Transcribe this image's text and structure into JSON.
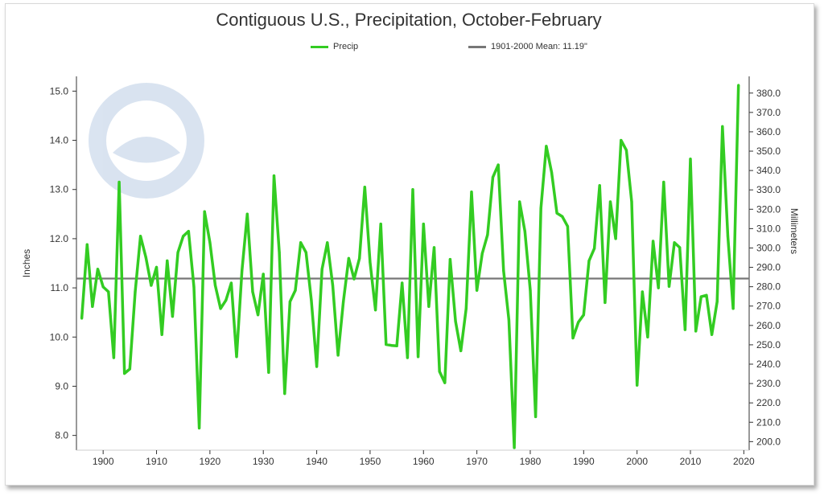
{
  "chart_data": {
    "type": "line",
    "title": "Contiguous U.S., Precipitation, October-February",
    "ylabel": "Inches",
    "y2label": "Millimeters",
    "ylim": [
      7.7,
      15.3
    ],
    "xlim": [
      1895,
      2021
    ],
    "y2lim": [
      195.58,
      388.62
    ],
    "yticks": [
      "8.0",
      "9.0",
      "10.0",
      "11.0",
      "12.0",
      "13.0",
      "14.0",
      "15.0"
    ],
    "y2ticks": [
      "200.0",
      "210.0",
      "220.0",
      "230.0",
      "240.0",
      "250.0",
      "260.0",
      "270.0",
      "280.0",
      "290.0",
      "300.0",
      "310.0",
      "320.0",
      "330.0",
      "340.0",
      "350.0",
      "360.0",
      "370.0",
      "380.0"
    ],
    "xticks": [
      "1900",
      "1910",
      "1920",
      "1930",
      "1940",
      "1950",
      "1960",
      "1970",
      "1980",
      "1990",
      "2000",
      "2010",
      "2020"
    ],
    "grid": false,
    "legend_position": "top-center",
    "series": [
      {
        "name": "Precip",
        "color": "#33cc22",
        "x": [
          1896,
          1897,
          1898,
          1899,
          1900,
          1901,
          1902,
          1903,
          1904,
          1905,
          1906,
          1907,
          1908,
          1909,
          1910,
          1911,
          1912,
          1913,
          1914,
          1915,
          1916,
          1917,
          1918,
          1919,
          1920,
          1921,
          1922,
          1923,
          1924,
          1925,
          1926,
          1927,
          1928,
          1929,
          1930,
          1931,
          1932,
          1933,
          1934,
          1935,
          1936,
          1937,
          1938,
          1939,
          1940,
          1941,
          1942,
          1943,
          1944,
          1945,
          1946,
          1947,
          1948,
          1949,
          1950,
          1951,
          1952,
          1953,
          1954,
          1955,
          1956,
          1957,
          1958,
          1959,
          1960,
          1961,
          1962,
          1963,
          1964,
          1965,
          1966,
          1967,
          1968,
          1969,
          1970,
          1971,
          1972,
          1973,
          1974,
          1975,
          1976,
          1977,
          1978,
          1979,
          1980,
          1981,
          1982,
          1983,
          1984,
          1985,
          1986,
          1987,
          1988,
          1989,
          1990,
          1991,
          1992,
          1993,
          1994,
          1995,
          1996,
          1997,
          1998,
          1999,
          2000,
          2001,
          2002,
          2003,
          2004,
          2005,
          2006,
          2007,
          2008,
          2009,
          2010,
          2011,
          2012,
          2013,
          2014,
          2015,
          2016,
          2017,
          2018,
          2019
        ],
        "values": [
          10.38,
          11.88,
          10.62,
          11.38,
          11.02,
          10.92,
          9.58,
          13.15,
          9.26,
          9.35,
          10.92,
          12.05,
          11.62,
          11.05,
          11.42,
          10.05,
          11.55,
          10.42,
          11.72,
          12.05,
          12.15,
          11.02,
          8.15,
          12.55,
          11.92,
          11.05,
          10.58,
          10.75,
          11.1,
          9.6,
          11.35,
          12.5,
          10.92,
          10.45,
          11.28,
          9.28,
          13.28,
          11.72,
          8.85,
          10.72,
          10.95,
          11.92,
          11.72,
          10.75,
          9.4,
          11.38,
          11.92,
          11.05,
          9.63,
          10.72,
          11.6,
          11.18,
          11.6,
          13.05,
          11.52,
          10.55,
          12.3,
          9.85,
          9.83,
          9.82,
          11.1,
          9.58,
          13.0,
          9.6,
          12.3,
          10.62,
          11.82,
          9.3,
          9.07,
          11.58,
          10.32,
          9.72,
          10.58,
          12.95,
          10.95,
          11.7,
          12.08,
          13.25,
          13.5,
          11.35,
          10.35,
          7.75,
          12.75,
          12.15,
          10.95,
          8.38,
          12.62,
          13.88,
          13.35,
          12.52,
          12.45,
          12.25,
          9.98,
          10.3,
          10.45,
          11.55,
          11.8,
          13.08,
          10.7,
          12.75,
          12.0,
          14.0,
          13.8,
          12.75,
          9.02,
          10.92,
          10.0,
          11.95,
          11.0,
          13.15,
          11.03,
          11.92,
          11.82,
          10.15,
          13.62,
          10.12,
          10.82,
          10.85,
          10.05,
          10.72,
          14.28,
          12.05,
          10.58,
          15.12
        ]
      },
      {
        "name": "1901-2000 Mean: 11.19\"",
        "color": "#777777",
        "mean": 11.19
      }
    ]
  },
  "legend": {
    "precip_label": "Precip",
    "mean_label": "1901-2000 Mean: 11.19\""
  }
}
